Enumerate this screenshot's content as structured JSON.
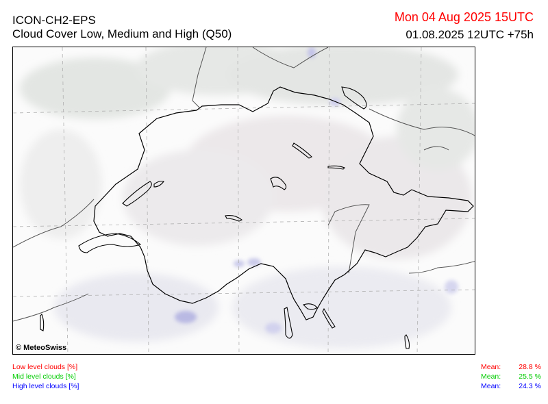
{
  "header": {
    "model": "ICON-CH2-EPS",
    "product": "Cloud Cover Low, Medium and High (Q50)",
    "valid_time": "Mon 04 Aug 2025 15UTC",
    "run_info": "01.08.2025 12UTC +75h"
  },
  "map": {
    "credit": "© MeteoSwiss",
    "colors": {
      "low": "#ff0000",
      "mid": "#00cc00",
      "high": "#0000ff"
    }
  },
  "legend": {
    "items": [
      {
        "label": "Low level clouds [%]",
        "mean_label": "Mean:",
        "mean_value": "28.8 %",
        "color": "#ff0000"
      },
      {
        "label": "Mid level clouds [%]",
        "mean_label": "Mean:",
        "mean_value": "25.5 %",
        "color": "#00cc00"
      },
      {
        "label": "High level clouds [%]",
        "mean_label": "Mean:",
        "mean_value": "24.3 %",
        "color": "#0000ff"
      }
    ]
  }
}
